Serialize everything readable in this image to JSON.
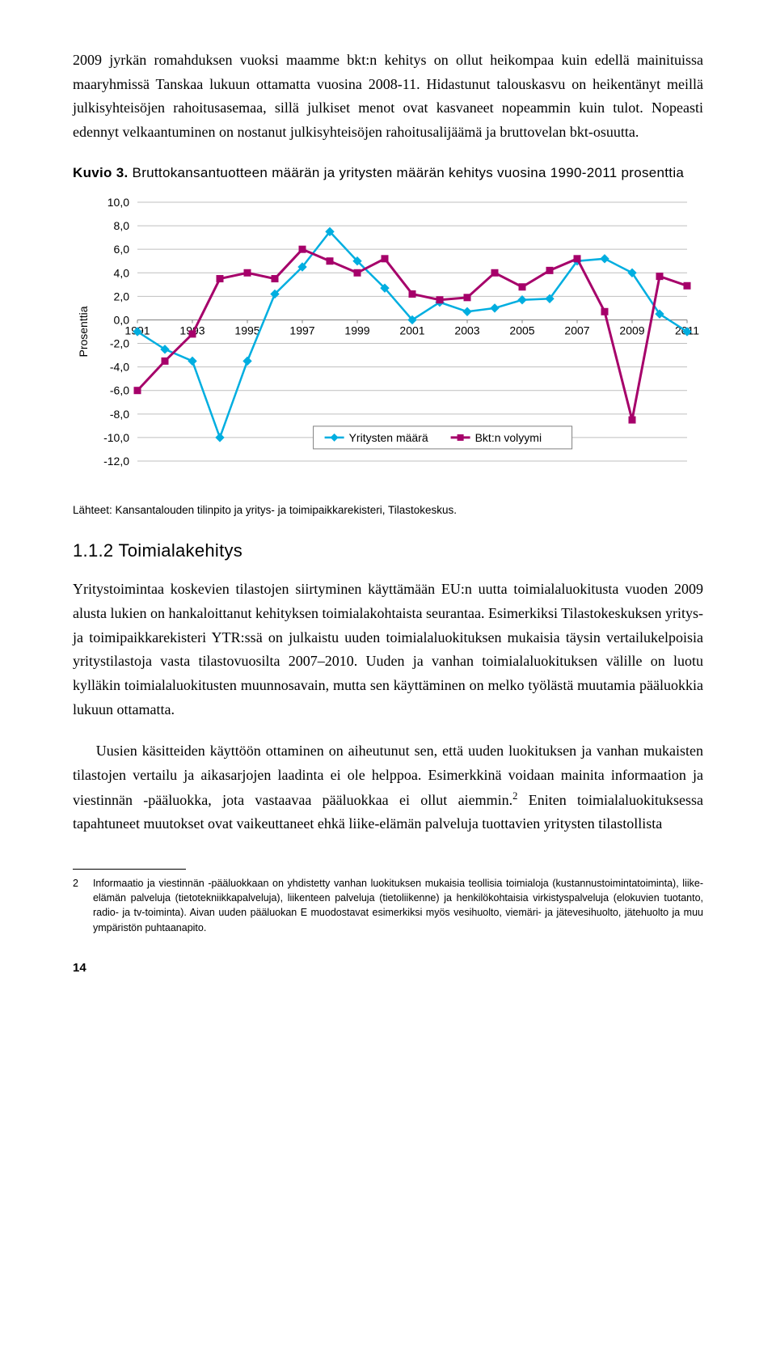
{
  "paragraphs": {
    "p1": "2009 jyrkän romahduksen vuoksi maamme bkt:n kehitys on ollut heikompaa kuin edellä mainituissa maaryhmissä Tanskaa lukuun ottamatta vuosina 2008-11. Hidastunut talouskasvu on heikentänyt meillä julkisyhteisöjen rahoitusasemaa, sillä julkiset menot ovat kasvaneet nopeammin kuin tulot. Nopeasti edennyt velkaantuminen on nostanut julkisyhteisöjen rahoitusalijäämä ja bruttovelan bkt-osuutta.",
    "p2a": "Yritystoimintaa koskevien tilastojen siirtyminen käyttämään EU:n uutta toimialaluokitusta vuoden 2009 alusta lukien on hankaloittanut kehityksen toimialakohtaista seurantaa. Esimerkiksi Tilastokeskuksen yritys- ja toimipaikkarekisteri YTR:ssä on julkaistu uuden toimialaluokituksen mukaisia täysin vertailukelpoisia yritystilastoja vasta tilastovuosilta 2007–2010. Uuden ja vanhan toimialaluokituksen välille on luotu kylläkin toimialaluokitusten muunnosavain, mutta sen käyttäminen on melko työlästä muutamia pääluokkia lukuun ottamatta.",
    "p2b_pre": "Uusien käsitteiden käyttöön ottaminen on aiheutunut sen, että uuden luokituksen ja vanhan mukaisten tilastojen vertailu ja aikasarjojen laadinta ei ole helppoa. Esimerkkinä voidaan mainita informaation ja viestinnän -pääluokka, jota vastaavaa pääluokkaa ei ollut aiemmin.",
    "p2b_post": " Eniten toimialaluokituksessa tapahtuneet muutokset ovat vaikeuttaneet ehkä liike-elämän palveluja tuottavien yritysten tilastollista"
  },
  "chart": {
    "title_bold": "Kuvio 3.",
    "title_rest": " Bruttokansantuotteen määrän ja yritysten määrän kehitys vuosina 1990-2011 prosenttia",
    "type": "line",
    "y_label": "Prosenttia",
    "x_ticks": [
      1991,
      1993,
      1995,
      1997,
      1999,
      2001,
      2003,
      2005,
      2007,
      2009,
      2011
    ],
    "y_ticks": [
      10,
      8,
      6,
      4,
      2,
      0,
      -2,
      -4,
      -6,
      -8,
      -10,
      -12
    ],
    "ylim": [
      -12,
      10
    ],
    "grid_color": "#bfbfbf",
    "axis_color": "#808080",
    "background": "#ffffff",
    "tick_fontsize": 14,
    "ylabel_fontsize": 14,
    "legend_fontsize": 14,
    "series": [
      {
        "name": "Yritysten määrä",
        "color": "#00aee0",
        "marker": "diamond",
        "marker_size": 7,
        "line_width": 2.5,
        "data": [
          {
            "x": 1991,
            "y": -1.0
          },
          {
            "x": 1992,
            "y": -2.5
          },
          {
            "x": 1993,
            "y": -3.5
          },
          {
            "x": 1994,
            "y": -10.0
          },
          {
            "x": 1995,
            "y": -3.5
          },
          {
            "x": 1996,
            "y": 2.2
          },
          {
            "x": 1997,
            "y": 4.5
          },
          {
            "x": 1998,
            "y": 7.5
          },
          {
            "x": 1999,
            "y": 5.0
          },
          {
            "x": 2000,
            "y": 2.7
          },
          {
            "x": 2001,
            "y": 0.0
          },
          {
            "x": 2002,
            "y": 1.5
          },
          {
            "x": 2003,
            "y": 0.7
          },
          {
            "x": 2004,
            "y": 1.0
          },
          {
            "x": 2005,
            "y": 1.7
          },
          {
            "x": 2006,
            "y": 1.8
          },
          {
            "x": 2007,
            "y": 5.0
          },
          {
            "x": 2008,
            "y": 5.2
          },
          {
            "x": 2009,
            "y": 4.0
          },
          {
            "x": 2010,
            "y": 0.5
          },
          {
            "x": 2011,
            "y": -1.0
          }
        ]
      },
      {
        "name": "Bkt:n volyymi",
        "color": "#a6006a",
        "marker": "square",
        "marker_size": 8,
        "line_width": 3,
        "data": [
          {
            "x": 1991,
            "y": -6.0
          },
          {
            "x": 1992,
            "y": -3.5
          },
          {
            "x": 1993,
            "y": -1.2
          },
          {
            "x": 1994,
            "y": 3.5
          },
          {
            "x": 1995,
            "y": 4.0
          },
          {
            "x": 1996,
            "y": 3.5
          },
          {
            "x": 1997,
            "y": 6.0
          },
          {
            "x": 1998,
            "y": 5.0
          },
          {
            "x": 1999,
            "y": 4.0
          },
          {
            "x": 2000,
            "y": 5.2
          },
          {
            "x": 2001,
            "y": 2.2
          },
          {
            "x": 2002,
            "y": 1.7
          },
          {
            "x": 2003,
            "y": 1.9
          },
          {
            "x": 2004,
            "y": 4.0
          },
          {
            "x": 2005,
            "y": 2.8
          },
          {
            "x": 2006,
            "y": 4.2
          },
          {
            "x": 2007,
            "y": 5.2
          },
          {
            "x": 2008,
            "y": 0.7
          },
          {
            "x": 2009,
            "y": -8.5
          },
          {
            "x": 2010,
            "y": 3.7
          },
          {
            "x": 2011,
            "y": 2.9
          }
        ]
      }
    ],
    "legend_items": [
      "Yritysten määrä",
      "Bkt:n volyymi"
    ],
    "source": "Lähteet: Kansantalouden tilinpito ja yritys- ja toimipaikkarekisteri, Tilastokeskus."
  },
  "section_heading": "1.1.2 Toimialakehitys",
  "footnote": {
    "num": "2",
    "text": "Informaatio ja viestinnän -pääluokkaan on yhdistetty vanhan luokituksen mukaisia teollisia toimialoja (kustannustoimintatoiminta), liike-elämän palveluja (tietotekniikkapalveluja), liikenteen palveluja (tietoliikenne) ja henkilökohtaisia virkistyspalveluja (elokuvien tuotanto, radio- ja tv-toiminta). Aivan uuden pääluokan E muodostavat esimerkiksi myös vesihuolto, viemäri- ja jätevesihuolto, jätehuolto ja muu ympäristön puhtaanapito."
  },
  "page_number": "14"
}
